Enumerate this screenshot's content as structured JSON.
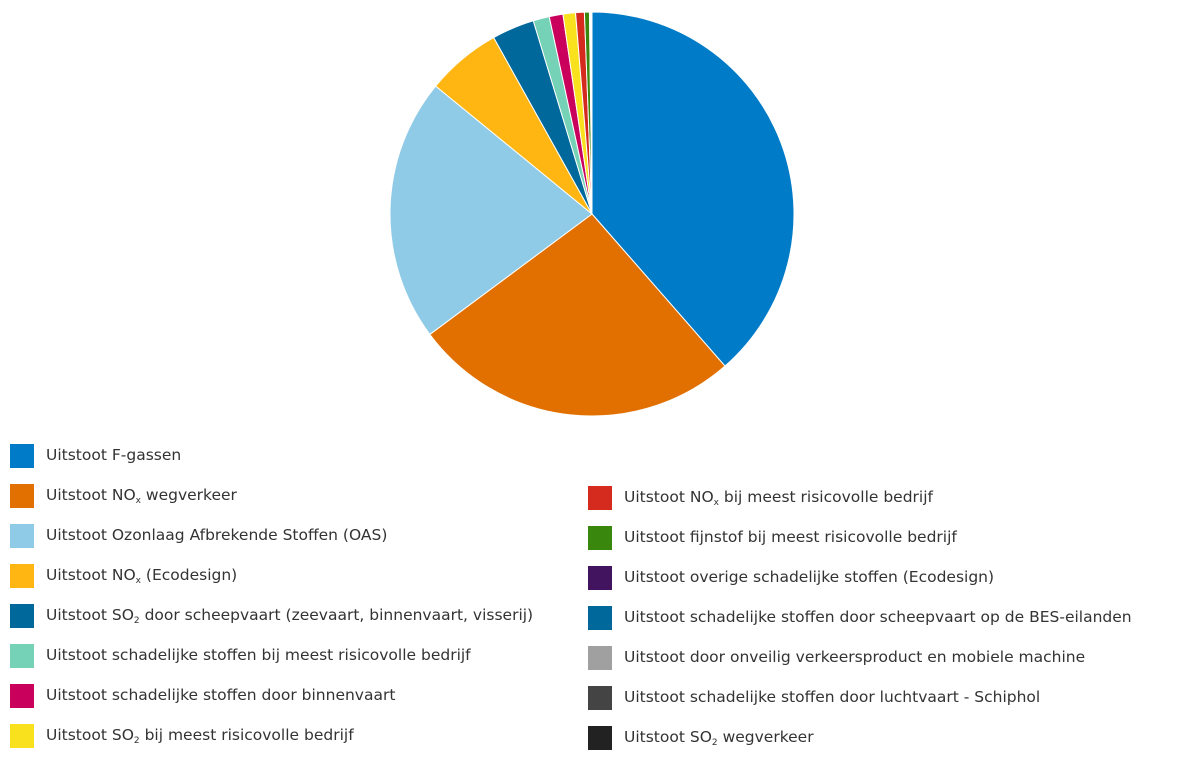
{
  "chart_data": {
    "type": "pie",
    "title": "",
    "slices": [
      {
        "label": "Uitstoot F-gassen",
        "value": 38.6,
        "color": "#007BC7"
      },
      {
        "label": "Uitstoot NOx wegverkeer",
        "value": 26.3,
        "color": "#E17000"
      },
      {
        "label": "Uitstoot Ozonlaag Afbrekende Stoffen (OAS)",
        "value": 21.1,
        "color": "#8FCAE7"
      },
      {
        "label": "Uitstoot NOx (Ecodesign)",
        "value": 6.0,
        "color": "#FFB612"
      },
      {
        "label": "Uitstoot SO2 door scheepvaart (zeevaart, binnenvaart, visserij)",
        "value": 3.4,
        "color": "#01689B"
      },
      {
        "label": "Uitstoot schadelijke stoffen bij meest risicovolle bedrijf",
        "value": 1.3,
        "color": "#76D2B6"
      },
      {
        "label": "Uitstoot schadelijke stoffen door binnenvaart",
        "value": 1.1,
        "color": "#CA005D"
      },
      {
        "label": "Uitstoot SO2 bij meest risicovolle bedrijf",
        "value": 1.0,
        "color": "#F9E11E"
      },
      {
        "label": "Uitstoot NOx bij meest risicovolle bedrijf",
        "value": 0.7,
        "color": "#D52B1E"
      },
      {
        "label": "Uitstoot fijnstof bij meest risicovolle bedrijf",
        "value": 0.4,
        "color": "#39870C"
      },
      {
        "label": "Uitstoot overige schadelijke stoffen (Ecodesign)",
        "value": 0.06,
        "color": "#42145F"
      },
      {
        "label": "Uitstoot schadelijke stoffen door scheepvaart op de BES-eilanden",
        "value": 0.05,
        "color": "#01689B"
      },
      {
        "label": "Uitstoot door onveilig verkeersproduct en mobiele machine",
        "value": 0.04,
        "color": "#A0A0A0"
      },
      {
        "label": "Uitstoot schadelijke stoffen door luchtvaart - Schiphol",
        "value": 0.03,
        "color": "#444444"
      },
      {
        "label": "Uitstoot SO2 wegverkeer",
        "value": 0.02,
        "color": "#222222"
      }
    ],
    "legend_placement": "bottom"
  },
  "legend": {
    "left": [
      {
        "pre": "Uitstoot F-gassen",
        "sub": "",
        "post": ""
      },
      {
        "pre": "Uitstoot NO",
        "sub": "x",
        "post": " wegverkeer"
      },
      {
        "pre": "Uitstoot Ozonlaag Afbrekende Stoffen (OAS)",
        "sub": "",
        "post": ""
      },
      {
        "pre": "Uitstoot NO",
        "sub": "x",
        "post": " (Ecodesign)"
      },
      {
        "pre": "Uitstoot SO",
        "sub": "2",
        "post": " door scheepvaart (zeevaart, binnenvaart, visserij)"
      },
      {
        "pre": "Uitstoot schadelijke stoffen bij meest risicovolle bedrijf",
        "sub": "",
        "post": ""
      },
      {
        "pre": "Uitstoot schadelijke stoffen door binnenvaart",
        "sub": "",
        "post": ""
      },
      {
        "pre": "Uitstoot SO",
        "sub": "2",
        "post": " bij meest risicovolle bedrijf"
      }
    ],
    "right": [
      {
        "pre": "Uitstoot NO",
        "sub": "x",
        "post": " bij meest risicovolle bedrijf"
      },
      {
        "pre": "Uitstoot fijnstof bij meest risicovolle bedrijf",
        "sub": "",
        "post": ""
      },
      {
        "pre": "Uitstoot overige schadelijke stoffen (Ecodesign)",
        "sub": "",
        "post": ""
      },
      {
        "pre": "Uitstoot schadelijke stoffen door scheepvaart op de BES-eilanden",
        "sub": "",
        "post": ""
      },
      {
        "pre": "Uitstoot door onveilig verkeersproduct en mobiele machine",
        "sub": "",
        "post": ""
      },
      {
        "pre": "Uitstoot schadelijke stoffen door luchtvaart - Schiphol",
        "sub": "",
        "post": ""
      },
      {
        "pre": "Uitstoot SO",
        "sub": "2",
        "post": " wegverkeer"
      }
    ]
  }
}
